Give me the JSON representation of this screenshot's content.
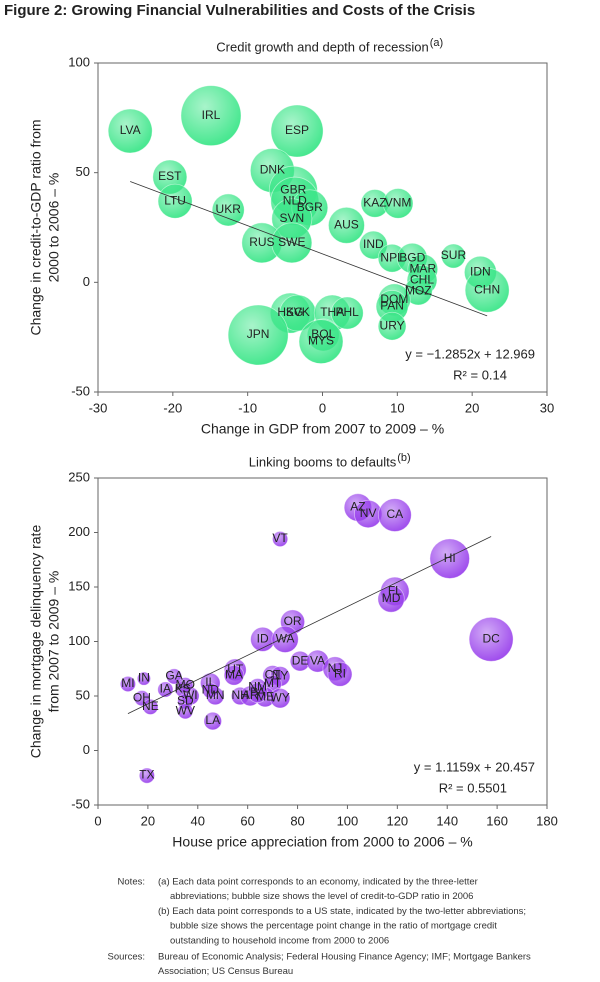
{
  "title": "Figure 2: Growing Financial Vulnerabilities and Costs of the Crisis",
  "chart_data": [
    {
      "type": "bubble",
      "title": "Credit growth and depth of recession",
      "title_note": "(a)",
      "xlabel": "Change in GDP from 2007 to 2009 – %",
      "ylabel": [
        "Change in credit-to-GDP ratio from",
        "2000 to 2006 – %"
      ],
      "color": "#3ee68a",
      "labels": [
        "LVA",
        "IRL",
        "ESP",
        "EST",
        "LTU",
        "DNK",
        "GBR",
        "NLD",
        "BGR",
        "UKR",
        "SVN",
        "KAZ",
        "VNM",
        "AUS",
        "RUS",
        "SWE",
        "IND",
        "NPL",
        "BGD",
        "SUR",
        "MAR",
        "IDN",
        "CHL",
        "MOZ",
        "CHN",
        "DOM",
        "PAN",
        "HKG",
        "SVK",
        "THA",
        "PHL",
        "URY",
        "JPN",
        "BOL",
        "MYS"
      ],
      "x": [
        -25.7,
        -14.9,
        -3.4,
        -20.4,
        -19.7,
        -6.7,
        -3.9,
        -3.7,
        -1.7,
        -12.6,
        -4.1,
        7.0,
        10.1,
        3.2,
        -8.1,
        -4.1,
        6.8,
        9.3,
        12.0,
        17.5,
        13.4,
        21.1,
        13.3,
        12.8,
        22.0,
        9.6,
        9.3,
        -4.3,
        -3.3,
        1.3,
        3.3,
        9.3,
        -8.6,
        0.1,
        -0.2
      ],
      "y": [
        69,
        76,
        69,
        48,
        37,
        51,
        42,
        37,
        34,
        33,
        29,
        36,
        36,
        26,
        18,
        18,
        17,
        11,
        11,
        12,
        6,
        4.6,
        1,
        -4,
        -3.6,
        -8,
        -11,
        -14,
        -14,
        -14,
        -14,
        -20,
        -24,
        -24,
        -27
      ],
      "sizes": [
        100,
        186,
        140,
        60,
        60,
        100,
        119,
        119,
        67,
        53,
        83,
        40,
        46,
        67,
        83,
        83,
        40,
        40,
        46,
        30,
        46,
        53,
        46,
        40,
        100,
        53,
        53,
        83,
        67,
        67,
        53,
        40,
        186,
        53,
        100
      ],
      "xlim": [
        -30,
        30
      ],
      "xticks": [
        -30,
        -20,
        -10,
        0,
        10,
        20,
        30
      ],
      "ylim": [
        -50,
        100
      ],
      "yticks": [
        -50,
        0,
        50,
        100
      ],
      "trendline": {
        "slope": -1.2852,
        "intercept": 12.969
      },
      "trend_label": "y = −1.2852x + 12.969",
      "r2_label": "R² = 0.14"
    },
    {
      "type": "bubble",
      "title": "Linking booms to defaults",
      "title_note": "(b)",
      "xlabel": "House price appreciation from 2000 to 2006 – %",
      "ylabel": [
        "Change in mortgage delinquency rate",
        "from 2007 to 2009 – %"
      ],
      "color": "#9b45ec",
      "labels": [
        "AZ",
        "NV",
        "CA",
        "VT",
        "HI",
        "FL",
        "MD",
        "OR",
        "ID",
        "WA",
        "DC",
        "DE",
        "VA",
        "NJ",
        "RI",
        "UT",
        "MA",
        "CT",
        "NY",
        "IL",
        "MT",
        "NM",
        "MN",
        "NH",
        "ME",
        "WY",
        "WI",
        "MI",
        "IN",
        "GA",
        "IA",
        "KS",
        "MO",
        "OH",
        "NE",
        "SD",
        "WV",
        "ND",
        "AR",
        "PA",
        "LA",
        "TX"
      ],
      "x": [
        104.2,
        108.3,
        119,
        73,
        141,
        119,
        117.5,
        78,
        66,
        75,
        157.6,
        81,
        88,
        95,
        97,
        55,
        54.5,
        70,
        73,
        45,
        70,
        64,
        47,
        57,
        67,
        73,
        37,
        12,
        18.4,
        30.5,
        27,
        34,
        35,
        17.6,
        21,
        35,
        35,
        45,
        61,
        64,
        46,
        19.6
      ],
      "y": [
        223,
        217,
        216,
        194,
        176,
        146,
        139,
        118,
        102,
        102,
        102,
        82,
        82,
        75,
        70,
        74,
        69,
        69,
        68,
        62,
        61,
        58,
        50,
        50,
        49,
        48,
        50,
        61,
        66,
        68,
        56,
        56,
        60,
        48,
        40,
        45,
        36,
        55,
        50,
        53,
        27,
        -23
      ],
      "sizes": [
        39,
        39,
        56,
        12,
        81,
        42,
        36,
        30,
        30,
        36,
        100,
        20,
        25,
        30,
        30,
        25,
        20,
        20,
        20,
        20,
        16,
        16,
        16,
        16,
        20,
        20,
        16,
        12,
        9,
        12,
        12,
        12,
        12,
        12,
        12,
        12,
        12,
        12,
        20,
        20,
        16,
        12
      ],
      "xlim": [
        0,
        180
      ],
      "xticks": [
        0,
        20,
        40,
        60,
        80,
        100,
        120,
        140,
        160,
        180
      ],
      "ylim": [
        -50,
        250
      ],
      "yticks": [
        -50,
        0,
        50,
        100,
        150,
        200,
        250
      ],
      "trendline": {
        "slope": 1.1159,
        "intercept": 20.457
      },
      "trend_label": "y = 1.1159x + 20.457",
      "r2_label": "R² = 0.5501"
    }
  ],
  "notes": {
    "label": "Notes:",
    "lines": [
      "(a) Each data point corresponds to an economy, indicated by the three-letter",
      "abbreviations; bubble size shows the level of credit-to-GDP ratio in 2006",
      "(b) Each data point corresponds to a US state, indicated by the two-letter abbreviations;",
      "bubble size shows the percentage point change in the ratio of mortgage credit",
      "outstanding to household income from 2000 to 2006"
    ]
  },
  "sources": {
    "label": "Sources:",
    "lines": [
      "Bureau of Economic Analysis; Federal Housing Finance Agency; IMF; Mortgage Bankers",
      "Association; US Census Bureau"
    ]
  }
}
